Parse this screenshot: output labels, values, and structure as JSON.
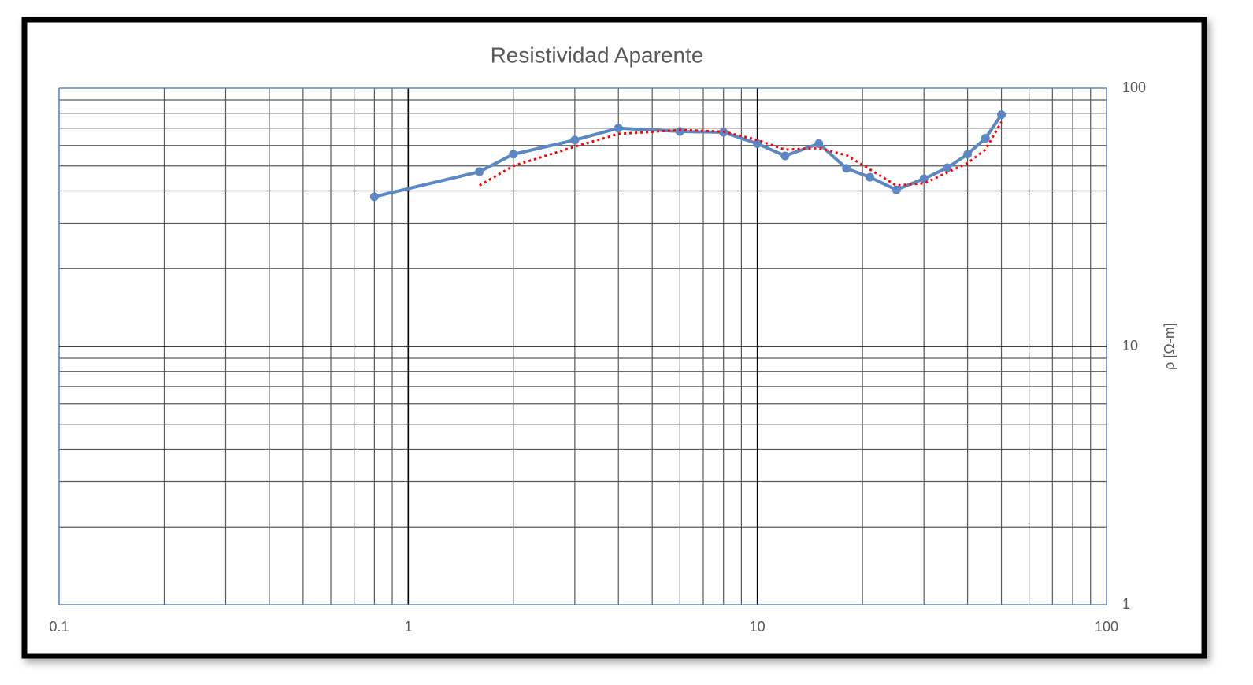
{
  "chart_data": {
    "type": "line",
    "title": "Resistividad Aparente",
    "y_label": "ρ [Ω-m]",
    "log_x": true,
    "log_y": true,
    "grid": true,
    "minor_grid": true,
    "xlim": [
      0.1,
      100
    ],
    "xticks": [
      0.1,
      1,
      10,
      100
    ],
    "ylim": [
      1,
      100
    ],
    "yticks": [
      1,
      10,
      100
    ],
    "y_axis_side": "right",
    "series": [
      {
        "color": "#5b87c5",
        "style": "solid",
        "markers": true,
        "x": [
          0.8,
          1.6,
          2,
          3,
          4,
          6,
          8,
          10,
          12,
          15,
          18,
          21,
          25,
          30,
          35,
          40,
          45,
          50
        ],
        "values": [
          38,
          47.5,
          55.5,
          63,
          70,
          68,
          67.5,
          61,
          54.7,
          61,
          48.9,
          45.2,
          40.4,
          44.6,
          49.2,
          55.5,
          64,
          79
        ]
      },
      {
        "color": "#ff0000",
        "style": "dotted",
        "markers": false,
        "x": [
          1.6,
          2,
          3,
          4,
          6,
          8,
          10,
          12,
          15,
          18,
          25,
          30,
          40,
          45,
          50
        ],
        "values": [
          42,
          50,
          59.4,
          66.5,
          68.9,
          67.9,
          63,
          57.8,
          58.6,
          55,
          42,
          42.8,
          51.3,
          57.8,
          74
        ]
      }
    ]
  }
}
